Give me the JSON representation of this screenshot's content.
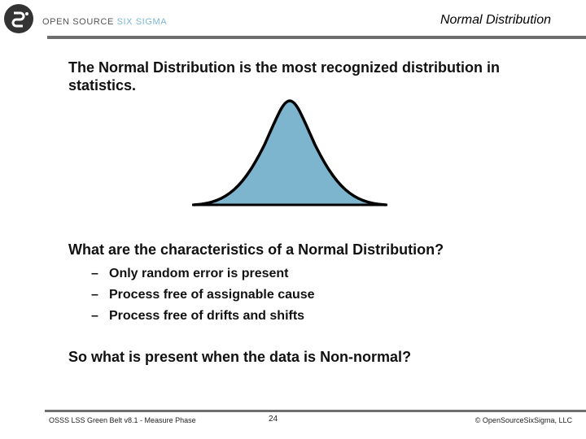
{
  "header": {
    "logo_brand_main": "OPEN SOURCE ",
    "logo_brand_accent": "SIX SIGMA",
    "title": "Normal Distribution"
  },
  "content": {
    "intro": "The Normal Distribution is the most recognized distribution in statistics.",
    "question": "What are the characteristics of a Normal Distribution?",
    "bullet_marker": "–",
    "bullets": [
      "Only random error is present",
      "Process free of assignable cause",
      "Process free of drifts and shifts"
    ],
    "closing": "So what is present when the data is Non-normal?"
  },
  "figure": {
    "icon": "bell-curve-icon",
    "fill_color": "#7db5cf",
    "stroke_color": "#000000"
  },
  "footer": {
    "left": "OSSS LSS Green Belt v8.1 - Measure Phase",
    "page": "24",
    "right": "© OpenSourceSixSigma, LLC"
  },
  "colors": {
    "rule": "#6e6e6e",
    "logo_accent": "#7ab7d3"
  }
}
